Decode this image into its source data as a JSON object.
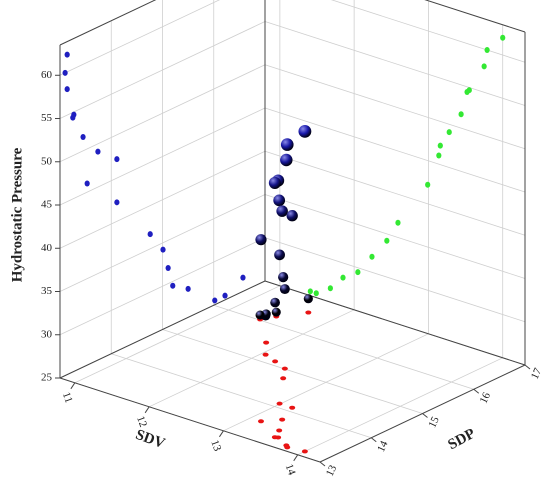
{
  "chart_data": {
    "type": "scatter3d",
    "xlabel": "SDV",
    "ylabel": "SDP",
    "zlabel": "Hydrostatic Pressure",
    "x": [
      14.0,
      13.79,
      13.75,
      13.55,
      13.52,
      13.44,
      13.28,
      13.16,
      13.14,
      12.99,
      12.59,
      12.44,
      12.24,
      12.05,
      11.85,
      11.68,
      11.49,
      11.41
    ],
    "y": [
      13.14,
      13.1,
      13.14,
      13.27,
      13.25,
      13.45,
      13.74,
      14.11,
      13.53,
      14.11,
      14.76,
      15.01,
      15.11,
      15.2,
      15.5,
      16.57,
      16.22,
      16.02
    ],
    "z": [
      62,
      60,
      58,
      54.7,
      54.4,
      51.6,
      49.1,
      47.2,
      46,
      42.2,
      36.7,
      34.2,
      31.8,
      29.5,
      28.3,
      26.6,
      25.5,
      25.5
    ],
    "xlim": [
      10.8,
      14.3
    ],
    "ylim": [
      13,
      17
    ],
    "zlim": [
      25,
      63.5
    ],
    "xticks": [
      11,
      12,
      13,
      14
    ],
    "yticks": [
      13,
      14,
      15,
      16,
      17
    ],
    "zticks": [
      25,
      30,
      35,
      40,
      45,
      50,
      55,
      60
    ],
    "grid": true,
    "point_colors": [
      "#000000",
      "#1a1ab4"
    ],
    "projection_colors": {
      "y_z": "#1f1fc0",
      "x_z": "#33e833",
      "x_y": "#e81414"
    }
  }
}
